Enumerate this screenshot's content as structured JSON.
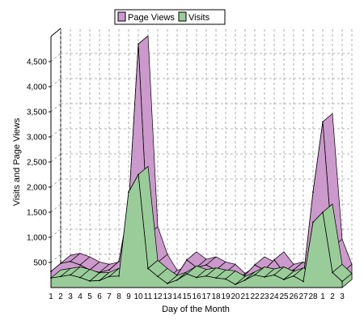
{
  "chart_data": {
    "type": "area",
    "style": "3d",
    "xlabel": "Day of the Month",
    "ylabel": "Visits and Page Views",
    "categories": [
      "1",
      "2",
      "3",
      "4",
      "5",
      "6",
      "7",
      "8",
      "9",
      "10",
      "11",
      "12",
      "13",
      "14",
      "15",
      "16",
      "17",
      "18",
      "19",
      "20",
      "21",
      "22",
      "23",
      "24",
      "25",
      "26",
      "27",
      "28",
      "1",
      "2",
      "3"
    ],
    "yticks": [
      500,
      1000,
      1500,
      2000,
      2500,
      3000,
      3500,
      4000,
      4500
    ],
    "ytick_labels": [
      "500",
      "1,000",
      "1,500",
      "2,000",
      "2,500",
      "3,000",
      "3,500",
      "4,000",
      "4,500"
    ],
    "ylim": [
      0,
      5000
    ],
    "grid": true,
    "legend_position": "top",
    "series": [
      {
        "name": "Page Views",
        "color": "#cc99cc",
        "values": [
          320,
          480,
          520,
          450,
          350,
          300,
          350,
          520,
          1600,
          4850,
          1050,
          500,
          180,
          250,
          550,
          400,
          450,
          350,
          300,
          120,
          250,
          450,
          350,
          550,
          300,
          350,
          200,
          1900,
          3300,
          800,
          300
        ]
      },
      {
        "name": "Visits",
        "color": "#99cc99",
        "values": [
          190,
          220,
          250,
          200,
          130,
          140,
          220,
          230,
          1900,
          2250,
          380,
          220,
          80,
          150,
          270,
          200,
          230,
          190,
          170,
          60,
          150,
          250,
          210,
          250,
          160,
          230,
          120,
          1300,
          1500,
          300,
          120
        ]
      }
    ]
  }
}
